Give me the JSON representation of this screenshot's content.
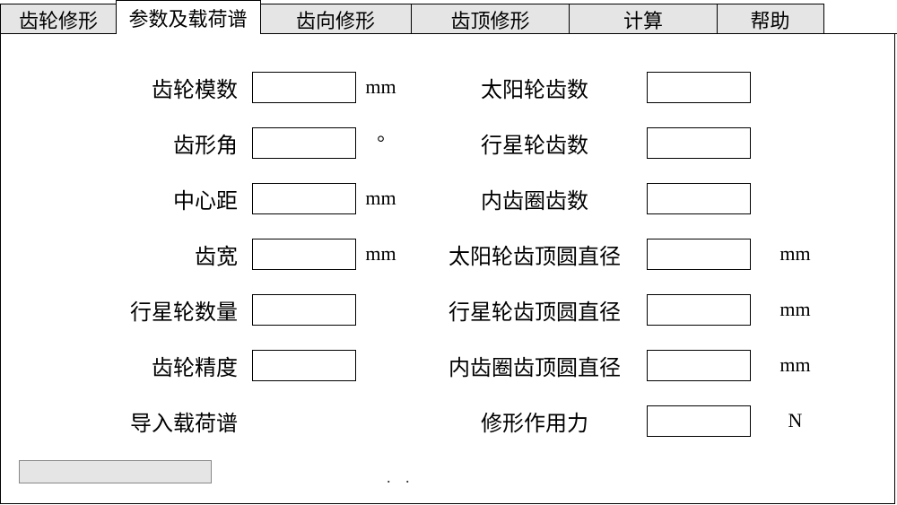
{
  "tabs": {
    "items": [
      {
        "label": "齿轮修形",
        "active": false
      },
      {
        "label": "参数及载荷谱",
        "active": true
      },
      {
        "label": "齿向修形",
        "active": false
      },
      {
        "label": "齿顶修形",
        "active": false
      },
      {
        "label": "计算",
        "active": false
      },
      {
        "label": "帮助",
        "active": false
      }
    ]
  },
  "form": {
    "left": [
      {
        "label": "齿轮模数",
        "value": "",
        "unit": "mm"
      },
      {
        "label": "齿形角",
        "value": "",
        "unit": "°"
      },
      {
        "label": "中心距",
        "value": "",
        "unit": "mm"
      },
      {
        "label": "齿宽",
        "value": "",
        "unit": "mm"
      },
      {
        "label": "行星轮数量",
        "value": "",
        "unit": ""
      },
      {
        "label": "齿轮精度",
        "value": "",
        "unit": ""
      },
      {
        "label": "导入载荷谱",
        "value": "",
        "unit": "",
        "noInput": true
      }
    ],
    "right": [
      {
        "label": "太阳轮齿数",
        "value": "",
        "unit": ""
      },
      {
        "label": "行星轮齿数",
        "value": "",
        "unit": ""
      },
      {
        "label": "内齿圈齿数",
        "value": "",
        "unit": ""
      },
      {
        "label": "太阳轮齿顶圆直径",
        "value": "",
        "unit": "mm"
      },
      {
        "label": "行星轮齿顶圆直径",
        "value": "",
        "unit": "mm"
      },
      {
        "label": "内齿圈齿顶圆直径",
        "value": "",
        "unit": "mm"
      },
      {
        "label": "修形作用力",
        "value": "",
        "unit": "N"
      }
    ]
  },
  "bottom": {
    "dots": ". ."
  },
  "colors": {
    "tab_inactive_bg": "#e5e5e5",
    "tab_active_bg": "#ffffff",
    "border": "#000000",
    "bottom_box_bg": "#e5e5e5",
    "bottom_box_border": "#888888"
  }
}
